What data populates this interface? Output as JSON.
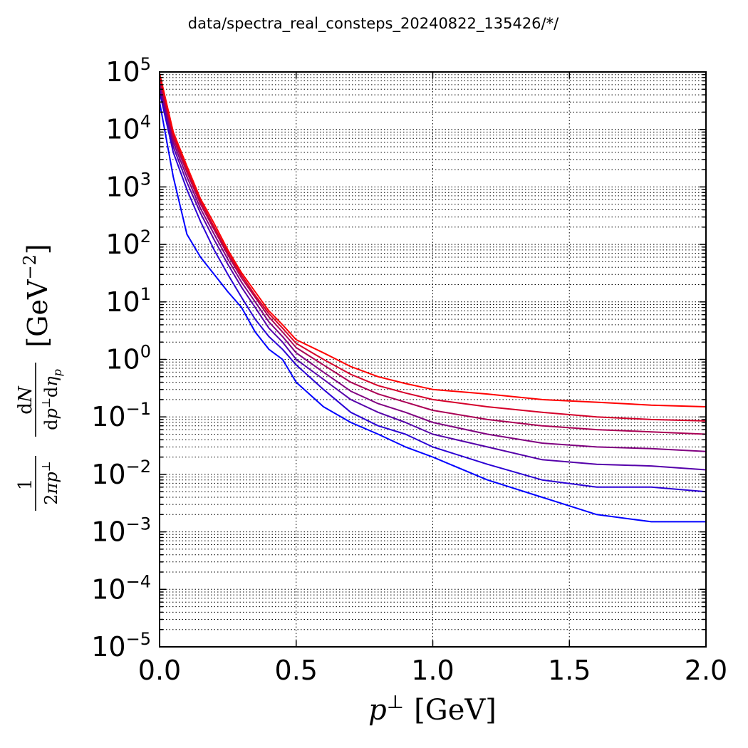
{
  "page": {
    "suptitle": "data/spectra_real_consteps_20240822_135426/*/"
  },
  "chart_data": {
    "type": "line",
    "title": "data/spectra_real_consteps_20240822_135426/*/",
    "xlabel": "p⊥ [GeV]",
    "ylabel": "(1 / 2πp⊥) dN / dp⊥dη_p [GeV⁻²]",
    "xlim": [
      0.0,
      2.0
    ],
    "ylim": [
      1e-05,
      100000.0
    ],
    "yscale": "log",
    "grid": true,
    "grid_style": "dotted",
    "x_ticks": [
      "0.0",
      "0.5",
      "1.0",
      "1.5",
      "2.0"
    ],
    "y_ticks": [
      {
        "base": "10",
        "exp": "5"
      },
      {
        "base": "10",
        "exp": "4"
      },
      {
        "base": "10",
        "exp": "3"
      },
      {
        "base": "10",
        "exp": "2"
      },
      {
        "base": "10",
        "exp": "1"
      },
      {
        "base": "10",
        "exp": "0"
      },
      {
        "base": "10",
        "exp": "−1"
      },
      {
        "base": "10",
        "exp": "−2"
      },
      {
        "base": "10",
        "exp": "−3"
      },
      {
        "base": "10",
        "exp": "−4"
      },
      {
        "base": "10",
        "exp": "−5"
      }
    ],
    "series_color_gradient": [
      "#0000ff",
      "#ff0000"
    ],
    "series": [
      {
        "color": "#0000ff",
        "x": [
          0.0,
          0.05,
          0.1,
          0.15,
          0.2,
          0.25,
          0.3,
          0.35,
          0.4,
          0.45,
          0.5,
          0.6,
          0.7,
          0.8,
          0.9,
          1.0,
          1.2,
          1.4,
          1.6,
          1.8,
          2.0
        ],
        "y": [
          30000,
          1500,
          150,
          60,
          30,
          15,
          8,
          3,
          1.5,
          1,
          0.4,
          0.15,
          0.08,
          0.05,
          0.03,
          0.02,
          0.008,
          0.004,
          0.002,
          0.0015,
          0.0015
        ]
      },
      {
        "color": "#2a00d5",
        "x": [
          0.0,
          0.05,
          0.1,
          0.15,
          0.2,
          0.25,
          0.3,
          0.35,
          0.4,
          0.45,
          0.5,
          0.6,
          0.7,
          0.8,
          0.9,
          1.0,
          1.2,
          1.4,
          1.6,
          1.8,
          2.0
        ],
        "y": [
          45000,
          4000,
          900,
          250,
          80,
          30,
          12,
          5,
          2.5,
          1.5,
          0.8,
          0.3,
          0.12,
          0.07,
          0.05,
          0.03,
          0.015,
          0.008,
          0.006,
          0.006,
          0.005
        ]
      },
      {
        "color": "#5500aa",
        "x": [
          0.0,
          0.05,
          0.1,
          0.15,
          0.2,
          0.25,
          0.3,
          0.35,
          0.4,
          0.45,
          0.5,
          0.6,
          0.7,
          0.8,
          0.9,
          1.0,
          1.2,
          1.4,
          1.6,
          1.8,
          2.0
        ],
        "y": [
          55000,
          5000,
          1200,
          350,
          120,
          45,
          18,
          8,
          3.5,
          2,
          1,
          0.45,
          0.2,
          0.12,
          0.08,
          0.05,
          0.03,
          0.018,
          0.015,
          0.014,
          0.012
        ]
      },
      {
        "color": "#800080",
        "x": [
          0.0,
          0.05,
          0.1,
          0.15,
          0.2,
          0.25,
          0.3,
          0.35,
          0.4,
          0.45,
          0.5,
          0.6,
          0.7,
          0.8,
          0.9,
          1.0,
          1.2,
          1.4,
          1.6,
          1.8,
          2.0
        ],
        "y": [
          65000,
          6000,
          1500,
          420,
          150,
          55,
          22,
          10,
          4.5,
          2.5,
          1.3,
          0.6,
          0.28,
          0.17,
          0.12,
          0.08,
          0.05,
          0.035,
          0.03,
          0.028,
          0.025
        ]
      },
      {
        "color": "#aa0055",
        "x": [
          0.0,
          0.05,
          0.1,
          0.15,
          0.2,
          0.25,
          0.3,
          0.35,
          0.4,
          0.45,
          0.5,
          0.6,
          0.7,
          0.8,
          0.9,
          1.0,
          1.2,
          1.4,
          1.6,
          1.8,
          2.0
        ],
        "y": [
          75000,
          7000,
          1800,
          500,
          180,
          65,
          26,
          12,
          5.5,
          3,
          1.6,
          0.8,
          0.4,
          0.25,
          0.18,
          0.13,
          0.09,
          0.07,
          0.06,
          0.055,
          0.05
        ]
      },
      {
        "color": "#d5002a",
        "x": [
          0.0,
          0.05,
          0.1,
          0.15,
          0.2,
          0.25,
          0.3,
          0.35,
          0.4,
          0.45,
          0.5,
          0.6,
          0.7,
          0.8,
          0.9,
          1.0,
          1.2,
          1.4,
          1.6,
          1.8,
          2.0
        ],
        "y": [
          85000,
          8000,
          2000,
          560,
          200,
          72,
          29,
          13,
          6.3,
          3.5,
          1.9,
          1,
          0.55,
          0.35,
          0.26,
          0.2,
          0.15,
          0.12,
          0.1,
          0.09,
          0.085
        ]
      },
      {
        "color": "#ff0000",
        "x": [
          0.0,
          0.05,
          0.1,
          0.15,
          0.2,
          0.25,
          0.3,
          0.35,
          0.4,
          0.45,
          0.5,
          0.6,
          0.7,
          0.8,
          0.9,
          1.0,
          1.2,
          1.4,
          1.6,
          1.8,
          2.0
        ],
        "y": [
          95000,
          9000,
          2300,
          620,
          230,
          80,
          32,
          15,
          7,
          4,
          2.2,
          1.3,
          0.75,
          0.5,
          0.38,
          0.3,
          0.25,
          0.2,
          0.18,
          0.16,
          0.15
        ]
      }
    ]
  }
}
